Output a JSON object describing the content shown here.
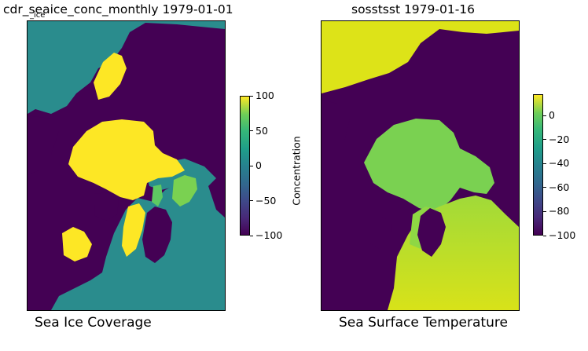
{
  "panels": [
    {
      "title": "cdr_seaice_conc_monthly 1979-01-01",
      "overlap_label": "_ice",
      "caption": "Sea Ice Coverage",
      "colorbar_label": "Concentration",
      "colorbar_ticks": [
        "100",
        "50",
        "0",
        "−50",
        "−100"
      ]
    },
    {
      "title": "sosstsst 1979-01-16",
      "caption": "Sea Surface Temperature",
      "colorbar_label": "",
      "colorbar_ticks": [
        "0",
        "−20",
        "−40",
        "−60",
        "−80",
        "−100"
      ]
    }
  ],
  "chart_data": [
    {
      "type": "heatmap",
      "title": "cdr_seaice_conc_monthly 1979-01-01",
      "xlabel": "Sea Ice Coverage",
      "ylabel": "",
      "colorbar_label": "Concentration",
      "colormap": "viridis",
      "clim": [
        -100,
        100
      ],
      "colorbar_ticks": [
        100,
        50,
        0,
        -50,
        -100
      ],
      "ocean_value_approx": 0,
      "ice_value_approx": 100,
      "land_value_approx": -100
    },
    {
      "type": "heatmap",
      "title": "sosstsst 1979-01-16",
      "xlabel": "Sea Surface Temperature",
      "ylabel": "",
      "colorbar_label": "",
      "colormap": "viridis",
      "clim": [
        -100,
        18
      ],
      "colorbar_ticks": [
        0,
        -20,
        -40,
        -60,
        -80,
        -100
      ],
      "arctic_sea_value_approx": -2,
      "warm_ocean_value_approx": 15,
      "land_value_approx": -100
    }
  ]
}
